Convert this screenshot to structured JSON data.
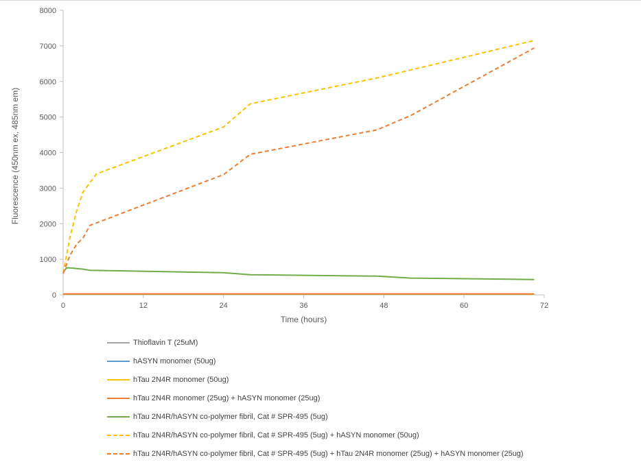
{
  "chart_data": {
    "type": "line",
    "title": "",
    "xlabel": "Time (hours)",
    "ylabel": "Fluorescence (450nm ex, 485nm em)",
    "xlim": [
      0,
      72
    ],
    "ylim": [
      0,
      8000
    ],
    "xticks": [
      0,
      12,
      24,
      36,
      48,
      60,
      72
    ],
    "yticks": [
      0,
      1000,
      2000,
      3000,
      4000,
      5000,
      6000,
      7000,
      8000
    ],
    "grid": false,
    "legend_position": "bottom",
    "series": [
      {
        "name": "Thioflavin T (25uM)",
        "color": "#a5a5a5",
        "dash": false,
        "x": [
          0,
          1,
          3,
          5,
          24,
          28,
          47,
          52,
          70.5
        ],
        "y": [
          20,
          20,
          20,
          20,
          20,
          20,
          20,
          20,
          20
        ]
      },
      {
        "name": "hASYN monomer (50ug)",
        "color": "#5b9bd5",
        "dash": false,
        "x": [
          0,
          1,
          3,
          5,
          24,
          28,
          47,
          52,
          70.5
        ],
        "y": [
          20,
          20,
          20,
          20,
          20,
          20,
          20,
          20,
          20
        ]
      },
      {
        "name": "hTau 2N4R monomer (50ug)",
        "color": "#ffc000",
        "dash": false,
        "x": [
          0,
          1,
          3,
          5,
          24,
          28,
          47,
          52,
          70.5
        ],
        "y": [
          25,
          25,
          25,
          25,
          25,
          25,
          25,
          25,
          25
        ]
      },
      {
        "name": "hTau 2N4R monomer (25ug) + hASYN monomer (25ug)",
        "color": "#ed7d31",
        "dash": false,
        "x": [
          0,
          1,
          3,
          5,
          24,
          28,
          47,
          52,
          70.5
        ],
        "y": [
          25,
          25,
          25,
          25,
          25,
          25,
          25,
          25,
          25
        ]
      },
      {
        "name": "hTau 2N4R/hASYN co-polymer fibril, Cat # SPR-495 (5ug)",
        "color": "#70ad47",
        "dash": false,
        "x": [
          0,
          0.5,
          1,
          3,
          4,
          24,
          28,
          47,
          52,
          70.5
        ],
        "y": [
          620,
          760,
          755,
          720,
          690,
          620,
          565,
          525,
          470,
          430
        ]
      },
      {
        "name": "hTau 2N4R/hASYN co-polymer fibril, Cat # SPR-495 (5ug) + hASYN monomer (50ug)",
        "color": "#ffc000",
        "dash": true,
        "x": [
          0,
          1,
          2,
          3,
          5,
          24,
          28,
          47,
          52,
          70.5
        ],
        "y": [
          600,
          1600,
          2350,
          2900,
          3400,
          4720,
          5370,
          6100,
          6320,
          7150
        ]
      },
      {
        "name": "hTau 2N4R/hASYN co-polymer fibril, Cat # SPR-495 (5ug) + hTau 2N4R monomer (25ug) + hASYN monomer (25ug)",
        "color": "#ed7d31",
        "dash": true,
        "x": [
          0,
          1,
          2,
          3,
          4,
          24,
          28,
          47,
          52,
          70.5
        ],
        "y": [
          600,
          1100,
          1420,
          1600,
          1950,
          3380,
          3950,
          4640,
          5040,
          6940
        ]
      }
    ]
  }
}
